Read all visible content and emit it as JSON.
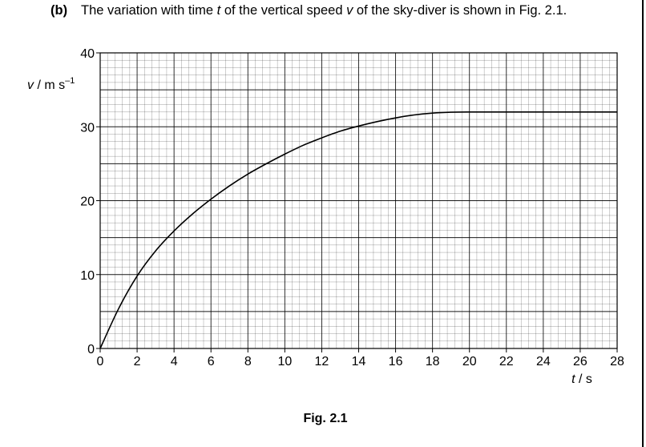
{
  "question": {
    "part": "(b)",
    "text_before_t": "The variation with time ",
    "t_symbol": "t",
    "text_middle": " of the vertical speed ",
    "v_symbol": "v",
    "text_after": " of the sky-diver is shown in Fig. 2.1."
  },
  "chart_data": {
    "type": "line",
    "title": "",
    "xlabel": "t / s",
    "ylabel": "v / m s⁻¹",
    "xlabel_italic": "t",
    "xlabel_unit": "s",
    "ylabel_italic": "v",
    "ylabel_unit": "m s",
    "ylabel_exponent": "–1",
    "xlim": [
      0,
      28
    ],
    "ylim": [
      0,
      40
    ],
    "x_ticks": [
      0,
      2,
      4,
      6,
      8,
      10,
      12,
      14,
      16,
      18,
      20,
      22,
      24,
      26,
      28
    ],
    "y_ticks": [
      0,
      10,
      20,
      30,
      40
    ],
    "grid": true,
    "series": [
      {
        "x": [
          0,
          1,
          2,
          3,
          4,
          5,
          6,
          7,
          8,
          9,
          10,
          11,
          12,
          13,
          14,
          15,
          16,
          17,
          18,
          19,
          20,
          22,
          24,
          26,
          28
        ],
        "y": [
          0,
          5.4,
          9.8,
          13.2,
          15.9,
          18.2,
          20.2,
          22.0,
          23.6,
          25.0,
          26.3,
          27.5,
          28.5,
          29.4,
          30.1,
          30.7,
          31.2,
          31.6,
          31.85,
          31.97,
          32.0,
          32.0,
          32.0,
          32.0,
          32.0
        ]
      }
    ]
  },
  "figure": {
    "caption": "Fig. 2.1"
  }
}
